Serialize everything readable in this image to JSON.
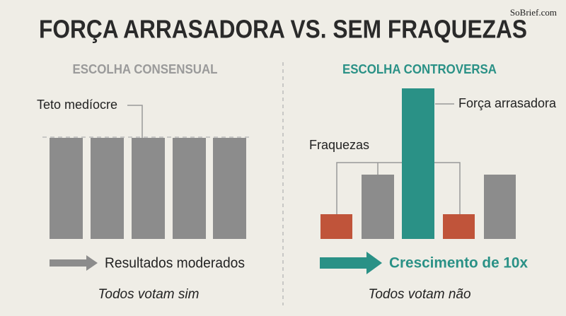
{
  "watermark": "SoBrief.com",
  "title": "FORÇA ARRASADORA VS. SEM FRAQUEZAS",
  "left": {
    "heading": "ESCOLHA CONSENSUAL",
    "ceiling_label": "Teto medíocre",
    "result": "Resultados moderados",
    "caption": "Todos votam sim"
  },
  "right": {
    "heading": "ESCOLHA CONTROVERSA",
    "strength_label": "Força arrasadora",
    "weakness_label": "Fraquezas",
    "result": "Crescimento de 10x",
    "caption": "Todos votam não"
  }
}
